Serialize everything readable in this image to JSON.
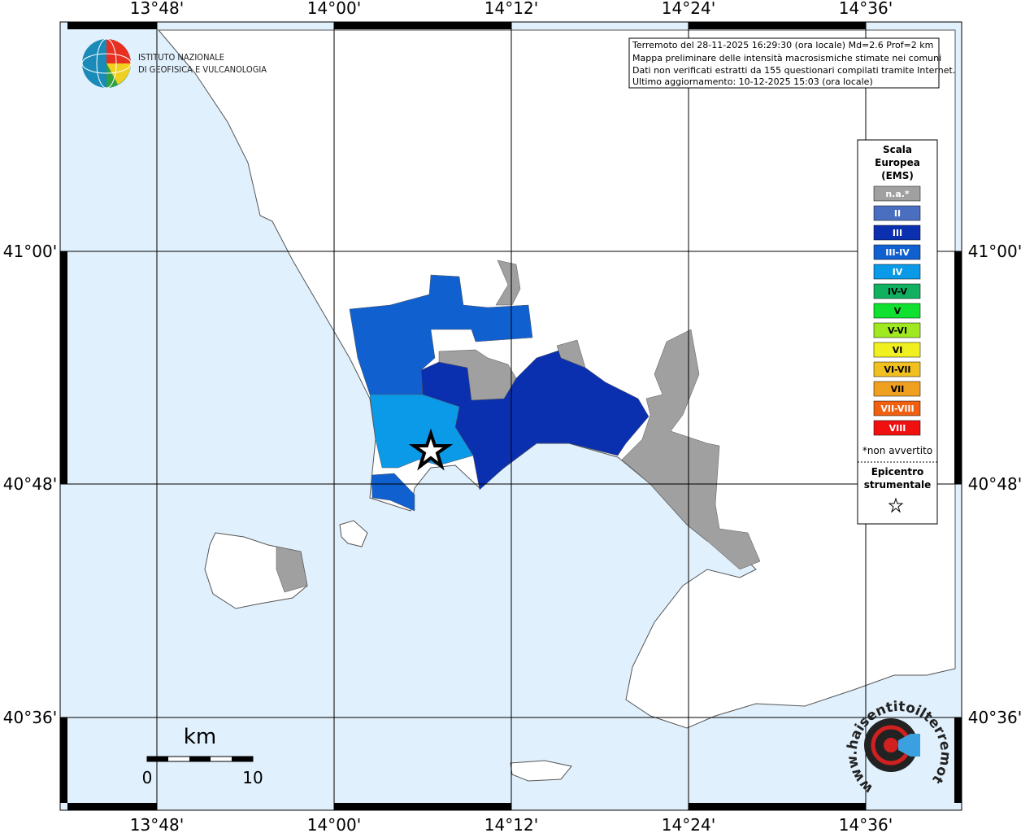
{
  "header": {
    "logo": [
      "ISTITUTO NAZIONALE",
      "DI GEOFISICA E VULCANOLOGIA"
    ]
  },
  "info": [
    "Terremoto del 28-11-2025 16:29:30 (ora locale) Md=2.6 Prof=2 km",
    "Mappa preliminare delle intensità macrosismiche stimate nei comuni",
    "Dati non verificati estratti da 155 questionari compilati tramite Internet.",
    "Ultimo aggiornamento: 10-12-2025 15:03 (ora locale)"
  ],
  "axes": {
    "longitude": [
      "13°48'",
      "14°00'",
      "14°12'",
      "14°24'",
      "14°36'"
    ],
    "latitude": [
      "41°00'",
      "40°48'",
      "40°36'"
    ]
  },
  "legend": {
    "title": [
      "Scala",
      "Europea",
      "(EMS)"
    ],
    "items": [
      {
        "label": "n.a.*",
        "color": "#a0a0a0"
      },
      {
        "label": "II",
        "color": "#4a6ec0"
      },
      {
        "label": "III",
        "color": "#0a30b0"
      },
      {
        "label": "III-IV",
        "color": "#1060d0"
      },
      {
        "label": "IV",
        "color": "#0a9ae8"
      },
      {
        "label": "IV-V",
        "color": "#10b060"
      },
      {
        "label": "V",
        "color": "#10e030"
      },
      {
        "label": "V-VI",
        "color": "#a0e820"
      },
      {
        "label": "VI",
        "color": "#f0f020"
      },
      {
        "label": "VI-VII",
        "color": "#f0c020"
      },
      {
        "label": "VII",
        "color": "#f0a020"
      },
      {
        "label": "VII-VIII",
        "color": "#f06010"
      },
      {
        "label": "VIII",
        "color": "#f01010"
      }
    ],
    "note": "*non avvertito",
    "epicenter": [
      "Epicentro",
      "strumentale"
    ]
  },
  "scale": {
    "unit": "km",
    "labels": [
      "0",
      "10"
    ]
  },
  "watermark": "www.haisentitoilterremoto.it"
}
